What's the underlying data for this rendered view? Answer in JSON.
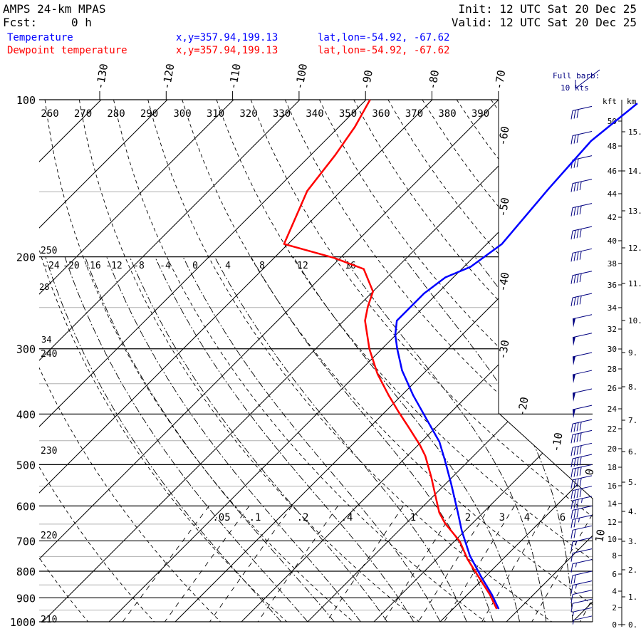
{
  "header": {
    "model": "AMPS 24-km MPAS",
    "fcst_label": "Fcst:",
    "fcst_value": "0 h",
    "init": "Init: 12 UTC Sat 20 Dec 25",
    "valid": "Valid: 12 UTC Sat 20 Dec 25",
    "temp_label": "Temperature",
    "temp_xy": "x,y=357.94,199.13",
    "temp_latlon": "lat,lon=-54.92, -67.62",
    "dew_label": "Dewpoint temperature",
    "dew_xy": "x,y=357.94,199.13",
    "dew_latlon": "lat,lon=-54.92, -67.62",
    "barb_legend_1": "Full barb:",
    "barb_legend_2": "10 kts",
    "kft_label": "kft",
    "km_label": "km"
  },
  "colors": {
    "temperature": "#0000ff",
    "dewpoint": "#ff0000",
    "barbs": "#000080",
    "grid": "#000000",
    "minor_isobar": "#b0b0b0"
  },
  "chart_data": {
    "type": "line",
    "subtype": "skew-T log-p",
    "ylabel": "Pressure (hPa)",
    "ylim": [
      1000,
      100
    ],
    "pressure_ticks": [
      100,
      200,
      300,
      400,
      500,
      600,
      700,
      800,
      900,
      1000
    ],
    "pressure_tick_labels": [
      "100",
      "200",
      "300",
      "400",
      "500",
      "600",
      "700",
      "800",
      "900",
      "1000"
    ],
    "isotherm_top_labels": [
      "-130",
      "-120",
      "-110",
      "-100",
      "-90",
      "-80",
      "-70"
    ],
    "isotherm_side_labels": [
      "-60",
      "-50",
      "-40",
      "-30",
      "-20",
      "-10",
      "0",
      "10"
    ],
    "theta_top_labels": [
      "260",
      "270",
      "280",
      "290",
      "300",
      "310",
      "320",
      "330",
      "340",
      "350",
      "360",
      "370",
      "380",
      "390"
    ],
    "theta_left_labels": [
      "250",
      "240",
      "230",
      "220",
      "210"
    ],
    "moist_labels": [
      "-24",
      "-20",
      "-16",
      "-12",
      "-8",
      "-4",
      "0",
      "4",
      "8",
      "12",
      "16"
    ],
    "moist_left_labels": [
      "28",
      "34"
    ],
    "mixing_ratio_labels": [
      ".05",
      ".1",
      ".2",
      ".4",
      "1",
      "2",
      "3",
      "4",
      "6"
    ],
    "mixing_ratio_values": [
      0.05,
      0.1,
      0.2,
      0.4,
      1,
      2,
      3,
      4,
      6
    ],
    "series": [
      {
        "name": "Temperature",
        "color": "#0000ff",
        "points": [
          [
            945,
            6.9
          ],
          [
            887,
            3.7
          ],
          [
            820,
            -0.6
          ],
          [
            747,
            -5.5
          ],
          [
            669,
            -10.5
          ],
          [
            618,
            -13.8
          ],
          [
            545,
            -19.1
          ],
          [
            489,
            -23.8
          ],
          [
            452,
            -27.3
          ],
          [
            411,
            -32.4
          ],
          [
            368,
            -38.3
          ],
          [
            330,
            -43.7
          ],
          [
            300,
            -47.7
          ],
          [
            282,
            -50.1
          ],
          [
            265,
            -52.0
          ],
          [
            235,
            -52.0
          ],
          [
            219,
            -51.2
          ],
          [
            209,
            -49.0
          ],
          [
            189,
            -47.7
          ],
          [
            148,
            -49.0
          ],
          [
            120,
            -49.8
          ],
          [
            101.6,
            -48.5
          ]
        ]
      },
      {
        "name": "Dewpoint temperature",
        "color": "#ff0000",
        "points": [
          [
            945,
            6.6
          ],
          [
            887,
            3.4
          ],
          [
            820,
            -1.0
          ],
          [
            759,
            -5.3
          ],
          [
            701,
            -9.2
          ],
          [
            648,
            -14.1
          ],
          [
            618,
            -16.6
          ],
          [
            581,
            -19.2
          ],
          [
            528,
            -23.2
          ],
          [
            481,
            -27.3
          ],
          [
            459,
            -29.7
          ],
          [
            425,
            -34.0
          ],
          [
            396,
            -38.0
          ],
          [
            368,
            -42.0
          ],
          [
            335,
            -46.9
          ],
          [
            300,
            -51.9
          ],
          [
            265,
            -56.8
          ],
          [
            249,
            -58.5
          ],
          [
            233,
            -60.0
          ],
          [
            211,
            -64.8
          ],
          [
            201,
            -70.9
          ],
          [
            189,
            -80.6
          ],
          [
            149.6,
            -85.1
          ],
          [
            127.7,
            -86.3
          ],
          [
            112.7,
            -87.6
          ],
          [
            100,
            -89.4
          ]
        ]
      }
    ],
    "wind_barbs_kt": [
      [
        103,
        30
      ],
      [
        115,
        30
      ],
      [
        128,
        30
      ],
      [
        142,
        40
      ],
      [
        158,
        40
      ],
      [
        175,
        40
      ],
      [
        193,
        40
      ],
      [
        213,
        40
      ],
      [
        235,
        40
      ],
      [
        258,
        50
      ],
      [
        280,
        50
      ],
      [
        305,
        50
      ],
      [
        330,
        50
      ],
      [
        358,
        50
      ],
      [
        385,
        50
      ],
      [
        410,
        40
      ],
      [
        430,
        40
      ],
      [
        455,
        40
      ],
      [
        478,
        40
      ],
      [
        500,
        40
      ],
      [
        525,
        40
      ],
      [
        550,
        40
      ],
      [
        575,
        35
      ],
      [
        600,
        30
      ],
      [
        625,
        25
      ],
      [
        655,
        20
      ],
      [
        690,
        15
      ],
      [
        725,
        10
      ],
      [
        760,
        15
      ],
      [
        800,
        20
      ],
      [
        835,
        15
      ],
      [
        870,
        10
      ],
      [
        905,
        10
      ],
      [
        940,
        5
      ],
      [
        975,
        5
      ]
    ],
    "height_axis": {
      "kft_ticks": [
        "0",
        "2",
        "4",
        "6",
        "8",
        "10",
        "12",
        "14",
        "16",
        "18",
        "20",
        "22",
        "24",
        "26",
        "28",
        "30",
        "32",
        "34",
        "36",
        "38",
        "40",
        "42",
        "44",
        "46",
        "48",
        "50"
      ],
      "km_ticks": [
        "0.",
        "1.",
        "2.",
        "3.",
        "4.",
        "5.",
        "6.",
        "7.",
        "8.",
        "9.",
        "10.",
        "11.",
        "12.",
        "13.",
        "14.",
        "15."
      ]
    }
  }
}
